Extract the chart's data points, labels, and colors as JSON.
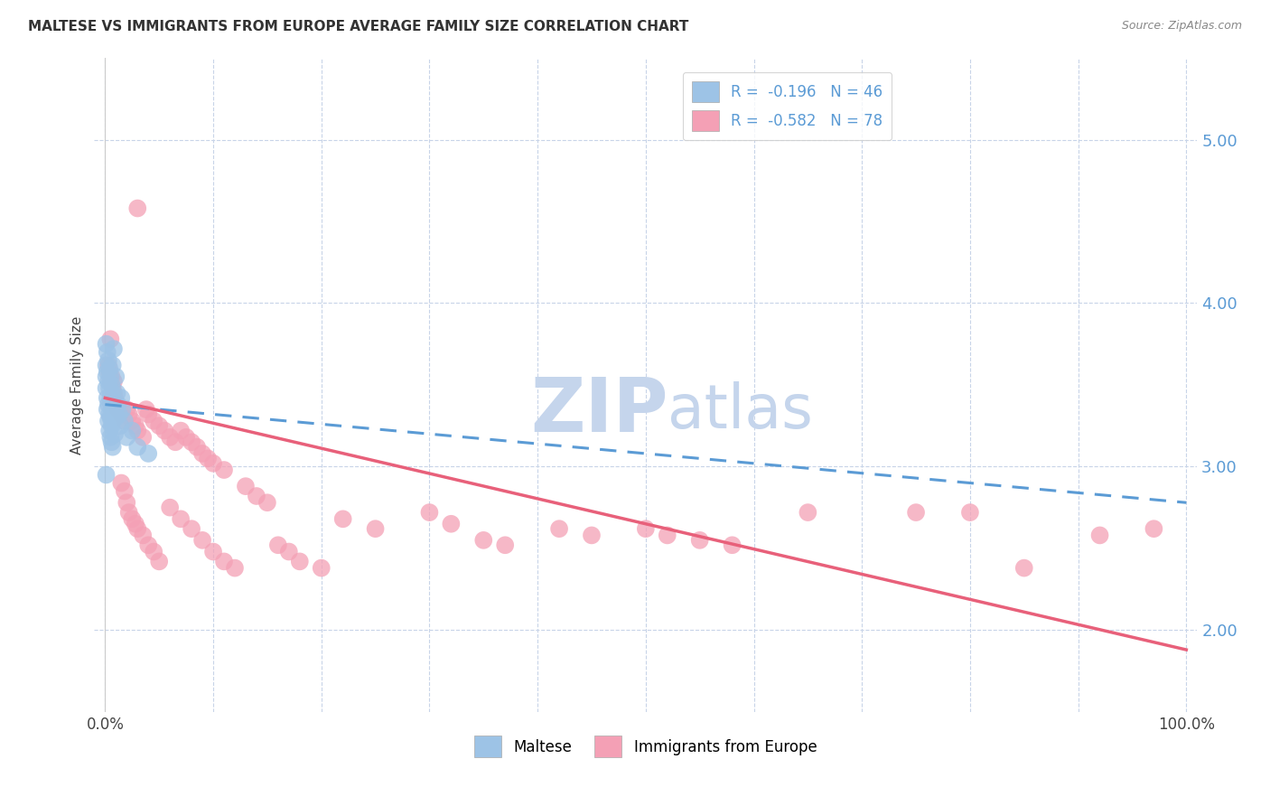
{
  "title": "MALTESE VS IMMIGRANTS FROM EUROPE AVERAGE FAMILY SIZE CORRELATION CHART",
  "source": "Source: ZipAtlas.com",
  "ylabel": "Average Family Size",
  "ylim": [
    1.5,
    5.5
  ],
  "xlim": [
    -0.01,
    1.01
  ],
  "yticks": [
    2.0,
    3.0,
    4.0,
    5.0
  ],
  "xticks": [
    0.0,
    0.1,
    0.2,
    0.3,
    0.4,
    0.5,
    0.6,
    0.7,
    0.8,
    0.9,
    1.0
  ],
  "watermark_zip": "ZIP",
  "watermark_atlas": "atlas",
  "blue_scatter": [
    [
      0.001,
      3.75
    ],
    [
      0.001,
      3.62
    ],
    [
      0.001,
      3.55
    ],
    [
      0.001,
      3.48
    ],
    [
      0.002,
      3.7
    ],
    [
      0.002,
      3.58
    ],
    [
      0.002,
      3.42
    ],
    [
      0.002,
      3.35
    ],
    [
      0.003,
      3.65
    ],
    [
      0.003,
      3.52
    ],
    [
      0.003,
      3.38
    ],
    [
      0.003,
      3.28
    ],
    [
      0.004,
      3.6
    ],
    [
      0.004,
      3.48
    ],
    [
      0.004,
      3.32
    ],
    [
      0.004,
      3.22
    ],
    [
      0.005,
      3.55
    ],
    [
      0.005,
      3.42
    ],
    [
      0.005,
      3.3
    ],
    [
      0.005,
      3.18
    ],
    [
      0.006,
      3.5
    ],
    [
      0.006,
      3.38
    ],
    [
      0.006,
      3.25
    ],
    [
      0.006,
      3.15
    ],
    [
      0.007,
      3.62
    ],
    [
      0.007,
      3.45
    ],
    [
      0.007,
      3.28
    ],
    [
      0.007,
      3.12
    ],
    [
      0.008,
      3.72
    ],
    [
      0.008,
      3.38
    ],
    [
      0.009,
      3.35
    ],
    [
      0.009,
      3.2
    ],
    [
      0.01,
      3.55
    ],
    [
      0.01,
      3.3
    ],
    [
      0.011,
      3.45
    ],
    [
      0.012,
      3.38
    ],
    [
      0.013,
      3.32
    ],
    [
      0.014,
      3.25
    ],
    [
      0.015,
      3.42
    ],
    [
      0.016,
      3.35
    ],
    [
      0.018,
      3.28
    ],
    [
      0.02,
      3.18
    ],
    [
      0.025,
      3.22
    ],
    [
      0.03,
      3.12
    ],
    [
      0.04,
      3.08
    ],
    [
      0.001,
      2.95
    ]
  ],
  "pink_scatter": [
    [
      0.003,
      3.62
    ],
    [
      0.004,
      3.58
    ],
    [
      0.005,
      3.52
    ],
    [
      0.006,
      3.55
    ],
    [
      0.007,
      3.48
    ],
    [
      0.008,
      3.45
    ],
    [
      0.009,
      3.42
    ],
    [
      0.01,
      3.38
    ],
    [
      0.012,
      3.35
    ],
    [
      0.015,
      3.32
    ],
    [
      0.018,
      3.28
    ],
    [
      0.02,
      3.35
    ],
    [
      0.022,
      3.32
    ],
    [
      0.025,
      3.28
    ],
    [
      0.028,
      3.25
    ],
    [
      0.03,
      3.22
    ],
    [
      0.035,
      3.18
    ],
    [
      0.038,
      3.35
    ],
    [
      0.04,
      3.32
    ],
    [
      0.045,
      3.28
    ],
    [
      0.05,
      3.25
    ],
    [
      0.055,
      3.22
    ],
    [
      0.06,
      3.18
    ],
    [
      0.065,
      3.15
    ],
    [
      0.07,
      3.22
    ],
    [
      0.075,
      3.18
    ],
    [
      0.08,
      3.15
    ],
    [
      0.085,
      3.12
    ],
    [
      0.09,
      3.08
    ],
    [
      0.095,
      3.05
    ],
    [
      0.1,
      3.02
    ],
    [
      0.11,
      2.98
    ],
    [
      0.03,
      4.58
    ],
    [
      0.005,
      3.78
    ],
    [
      0.008,
      3.52
    ],
    [
      0.015,
      2.9
    ],
    [
      0.018,
      2.85
    ],
    [
      0.02,
      2.78
    ],
    [
      0.022,
      2.72
    ],
    [
      0.025,
      2.68
    ],
    [
      0.028,
      2.65
    ],
    [
      0.03,
      2.62
    ],
    [
      0.035,
      2.58
    ],
    [
      0.04,
      2.52
    ],
    [
      0.045,
      2.48
    ],
    [
      0.05,
      2.42
    ],
    [
      0.06,
      2.75
    ],
    [
      0.07,
      2.68
    ],
    [
      0.08,
      2.62
    ],
    [
      0.09,
      2.55
    ],
    [
      0.1,
      2.48
    ],
    [
      0.11,
      2.42
    ],
    [
      0.12,
      2.38
    ],
    [
      0.13,
      2.88
    ],
    [
      0.14,
      2.82
    ],
    [
      0.15,
      2.78
    ],
    [
      0.16,
      2.52
    ],
    [
      0.17,
      2.48
    ],
    [
      0.18,
      2.42
    ],
    [
      0.2,
      2.38
    ],
    [
      0.22,
      2.68
    ],
    [
      0.25,
      2.62
    ],
    [
      0.3,
      2.72
    ],
    [
      0.32,
      2.65
    ],
    [
      0.35,
      2.55
    ],
    [
      0.37,
      2.52
    ],
    [
      0.42,
      2.62
    ],
    [
      0.45,
      2.58
    ],
    [
      0.5,
      2.62
    ],
    [
      0.52,
      2.58
    ],
    [
      0.55,
      2.55
    ],
    [
      0.58,
      2.52
    ],
    [
      0.65,
      2.72
    ],
    [
      0.75,
      2.72
    ],
    [
      0.8,
      2.72
    ],
    [
      0.85,
      2.38
    ],
    [
      0.92,
      2.58
    ],
    [
      0.97,
      2.62
    ]
  ],
  "blue_line": {
    "x": [
      0.0,
      1.0
    ],
    "y": [
      3.38,
      2.78
    ]
  },
  "pink_line": {
    "x": [
      0.0,
      1.0
    ],
    "y": [
      3.42,
      1.88
    ]
  },
  "blue_color": "#5b9bd5",
  "pink_color": "#e8607a",
  "blue_scatter_color": "#9dc3e6",
  "pink_scatter_color": "#f4a0b5",
  "background_color": "#ffffff",
  "grid_color": "#c8d4e8",
  "title_fontsize": 11,
  "source_fontsize": 9,
  "watermark_color_zip": "#c5d5ec",
  "watermark_color_atlas": "#c5d5ec",
  "watermark_fontsize": 60
}
